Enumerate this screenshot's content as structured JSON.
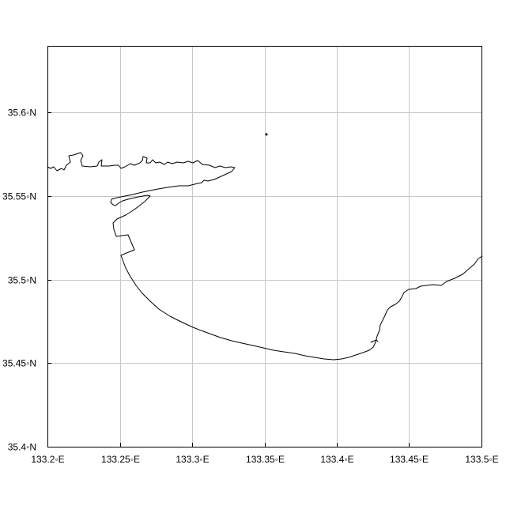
{
  "map": {
    "lon_range": [
      133.2,
      133.5
    ],
    "lat_range": [
      35.4,
      35.64
    ],
    "lon_ticks": [
      {
        "value": 133.2,
        "label": "133.2◦E"
      },
      {
        "value": 133.25,
        "label": "133.25◦E"
      },
      {
        "value": 133.3,
        "label": "133.3◦E"
      },
      {
        "value": 133.35,
        "label": "133.35◦E"
      },
      {
        "value": 133.4,
        "label": "133.4◦E"
      },
      {
        "value": 133.45,
        "label": "133.45◦E"
      },
      {
        "value": 133.5,
        "label": "133.5◦E"
      }
    ],
    "lat_ticks": [
      {
        "value": 35.4,
        "label": "35.4◦N"
      },
      {
        "value": 35.45,
        "label": "35.45◦N"
      },
      {
        "value": 35.5,
        "label": "35.5◦N"
      },
      {
        "value": 35.55,
        "label": "35.55◦N"
      },
      {
        "value": 35.6,
        "label": "35.6◦N"
      }
    ],
    "grid": true,
    "features": [
      "coastline",
      "islet"
    ]
  }
}
